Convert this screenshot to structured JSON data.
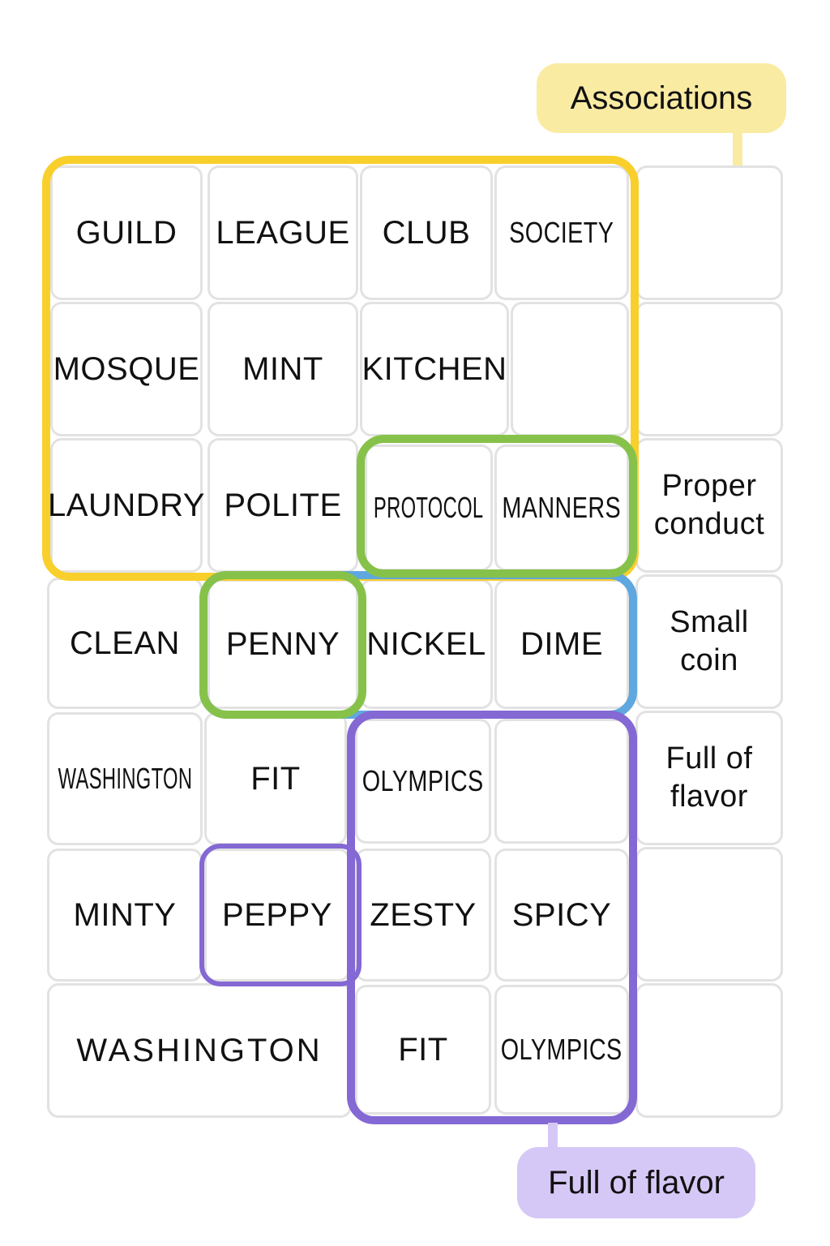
{
  "labels": {
    "associations": "Associations",
    "full_of_flavor": "Full of flavor"
  },
  "rows": [
    [
      "GUILD",
      "LEAGUE",
      "CLUB",
      "SOCIETY",
      ""
    ],
    [
      "MOSQUE",
      "MINT",
      "KITCHEN",
      "",
      ""
    ],
    [
      "LAUNDRY",
      "POLITE",
      "PROTOCOL",
      "MANNERS",
      "Proper conduct"
    ],
    [
      "CLEAN",
      "PENNY",
      "NICKEL",
      "DIME",
      "Small coin"
    ],
    [
      "WASHINGTON",
      "FIT",
      "OLYMPICS",
      "",
      "Full of flavor"
    ],
    [
      "MINTY",
      "PEPPY",
      "ZESTY",
      "SPICY",
      ""
    ],
    [
      "WASHINGTON",
      "FIT",
      "OLYMPICS",
      ""
    ]
  ],
  "colors": {
    "yellow": "#f9cf2c",
    "green": "#86c24a",
    "blue": "#5fa7df",
    "purple": "#8468d4",
    "tile_border": "#e2e2e2"
  }
}
